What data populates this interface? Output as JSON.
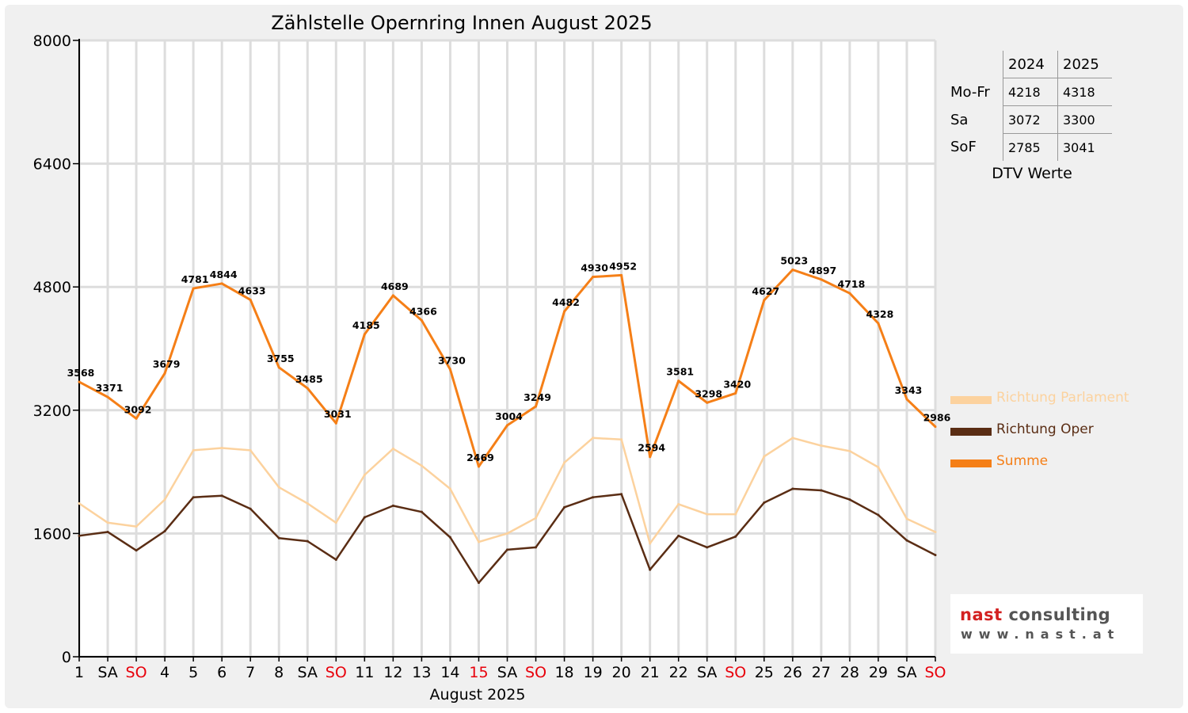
{
  "chart_data": {
    "type": "line",
    "title": "Zählstelle Opernring Innen August 2025",
    "xlabel": "August 2025",
    "ylabel": "",
    "ylim": [
      0,
      8000
    ],
    "yticks": [
      "0",
      "1600",
      "3200",
      "4800",
      "6400",
      "8000"
    ],
    "grid": true,
    "legend_position": "right",
    "categories": [
      "1",
      "SA",
      "SO",
      "4",
      "5",
      "6",
      "7",
      "8",
      "SA",
      "SO",
      "11",
      "12",
      "13",
      "14",
      "15",
      "SA",
      "SO",
      "18",
      "19",
      "20",
      "21",
      "22",
      "SA",
      "SO",
      "25",
      "26",
      "27",
      "28",
      "29",
      "SA",
      "SO"
    ],
    "highlighted_categories": [
      2,
      9,
      14,
      16,
      23,
      30
    ],
    "highlight_color": "#e8000b",
    "series": [
      {
        "name": "Richtung Parlament",
        "color": "#fcd29e",
        "values": [
          1990,
          1740,
          1690,
          2040,
          2680,
          2710,
          2680,
          2200,
          1990,
          1740,
          2360,
          2700,
          2480,
          2180,
          1490,
          1600,
          1800,
          2520,
          2840,
          2820,
          1470,
          1980,
          1850,
          1850,
          2600,
          2840,
          2740,
          2670,
          2460,
          1790,
          1620
        ]
      },
      {
        "name": "Richtung Oper",
        "color": "#5a2d14",
        "values": [
          1570,
          1620,
          1380,
          1630,
          2070,
          2090,
          1920,
          1540,
          1500,
          1260,
          1810,
          1960,
          1880,
          1550,
          960,
          1390,
          1420,
          1940,
          2070,
          2110,
          1130,
          1570,
          1420,
          1560,
          2000,
          2180,
          2160,
          2040,
          1840,
          1510,
          1320
        ]
      },
      {
        "name": "Summe",
        "color": "#f57f17",
        "values": [
          3568,
          3371,
          3092,
          3679,
          4781,
          4844,
          4633,
          3755,
          3485,
          3031,
          4185,
          4689,
          4366,
          3730,
          2469,
          3004,
          3249,
          4482,
          4930,
          4952,
          2594,
          3581,
          3298,
          3420,
          4627,
          5023,
          4897,
          4718,
          4328,
          3343,
          2986
        ]
      }
    ],
    "data_labels": [
      "3568",
      "3371",
      "3092",
      "3679",
      "4781",
      "4844",
      "4633",
      "3755",
      "3485",
      "3031",
      "4185",
      "4689",
      "4366",
      "3730",
      "2469",
      "3004",
      "3249",
      "4482",
      "4930",
      "4952",
      "2594",
      "3581",
      "3298",
      "3420",
      "4627",
      "5023",
      "4897",
      "4718",
      "4328",
      "3343",
      "2986"
    ]
  },
  "dtv_table": {
    "caption": "DTV Werte",
    "years": [
      "2024",
      "2025"
    ],
    "rows": [
      {
        "label": "Mo-Fr",
        "values": [
          "4218",
          "4318"
        ]
      },
      {
        "label": "Sa",
        "values": [
          "3072",
          "3300"
        ]
      },
      {
        "label": "SoF",
        "values": [
          "2785",
          "3041"
        ]
      }
    ]
  },
  "logo": {
    "name_part1": "nast",
    "name_part2": "consulting",
    "url": "www.nast.at",
    "accent_color": "#d32020"
  }
}
